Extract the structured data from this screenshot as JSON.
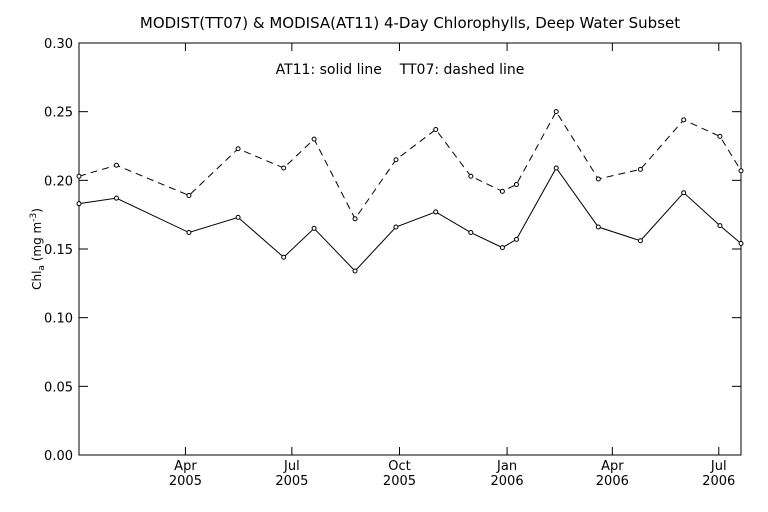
{
  "chart_data": {
    "type": "line",
    "title": "MODIST(TT07) & MODISA(AT11) 4-Day Chlorophylls, Deep Water Subset",
    "annotation": "AT11: solid line    TT07: dashed line",
    "ylabel": "Chl",
    "ylabel_sub": "a",
    "ylabel_unit_open": " (mg m",
    "ylabel_unit_sup": "-3",
    "ylabel_unit_close": ")",
    "ylim": [
      0.0,
      0.3
    ],
    "y_ticks": [
      "0.00",
      "0.05",
      "0.10",
      "0.15",
      "0.20",
      "0.25",
      "0.30"
    ],
    "x_range": [
      "2004-12-31",
      "2006-07-20"
    ],
    "x_ticks": [
      {
        "date": "2005-04-01",
        "month": "Apr",
        "year": "2005"
      },
      {
        "date": "2005-07-01",
        "month": "Jul",
        "year": "2005"
      },
      {
        "date": "2005-10-01",
        "month": "Oct",
        "year": "2005"
      },
      {
        "date": "2006-01-01",
        "month": "Jan",
        "year": "2006"
      },
      {
        "date": "2006-04-01",
        "month": "Apr",
        "year": "2006"
      },
      {
        "date": "2006-07-01",
        "month": "Jul",
        "year": "2006"
      }
    ],
    "series": [
      {
        "name": "AT11",
        "style": "solid",
        "color": "#000000",
        "points": [
          {
            "x": "2004-12-31",
            "y": 0.183
          },
          {
            "x": "2005-02-01",
            "y": 0.187
          },
          {
            "x": "2005-04-04",
            "y": 0.162
          },
          {
            "x": "2005-05-16",
            "y": 0.173
          },
          {
            "x": "2005-06-24",
            "y": 0.144
          },
          {
            "x": "2005-07-20",
            "y": 0.165
          },
          {
            "x": "2005-08-24",
            "y": 0.134
          },
          {
            "x": "2005-09-28",
            "y": 0.166
          },
          {
            "x": "2005-11-01",
            "y": 0.177
          },
          {
            "x": "2005-12-01",
            "y": 0.162
          },
          {
            "x": "2005-12-28",
            "y": 0.151
          },
          {
            "x": "2006-01-09",
            "y": 0.157
          },
          {
            "x": "2006-02-12",
            "y": 0.209
          },
          {
            "x": "2006-03-20",
            "y": 0.166
          },
          {
            "x": "2006-04-25",
            "y": 0.156
          },
          {
            "x": "2006-06-01",
            "y": 0.191
          },
          {
            "x": "2006-07-02",
            "y": 0.167
          },
          {
            "x": "2006-07-20",
            "y": 0.154
          }
        ]
      },
      {
        "name": "TT07",
        "style": "dashed",
        "color": "#000000",
        "points": [
          {
            "x": "2004-12-31",
            "y": 0.203
          },
          {
            "x": "2005-02-01",
            "y": 0.211
          },
          {
            "x": "2005-04-04",
            "y": 0.189
          },
          {
            "x": "2005-05-16",
            "y": 0.223
          },
          {
            "x": "2005-06-24",
            "y": 0.209
          },
          {
            "x": "2005-07-20",
            "y": 0.23
          },
          {
            "x": "2005-08-24",
            "y": 0.172
          },
          {
            "x": "2005-09-28",
            "y": 0.215
          },
          {
            "x": "2005-11-01",
            "y": 0.237
          },
          {
            "x": "2005-12-01",
            "y": 0.203
          },
          {
            "x": "2005-12-28",
            "y": 0.192
          },
          {
            "x": "2006-01-09",
            "y": 0.197
          },
          {
            "x": "2006-02-12",
            "y": 0.25
          },
          {
            "x": "2006-03-20",
            "y": 0.201
          },
          {
            "x": "2006-04-25",
            "y": 0.208
          },
          {
            "x": "2006-06-01",
            "y": 0.244
          },
          {
            "x": "2006-07-02",
            "y": 0.232
          },
          {
            "x": "2006-07-20",
            "y": 0.207
          }
        ]
      }
    ]
  }
}
